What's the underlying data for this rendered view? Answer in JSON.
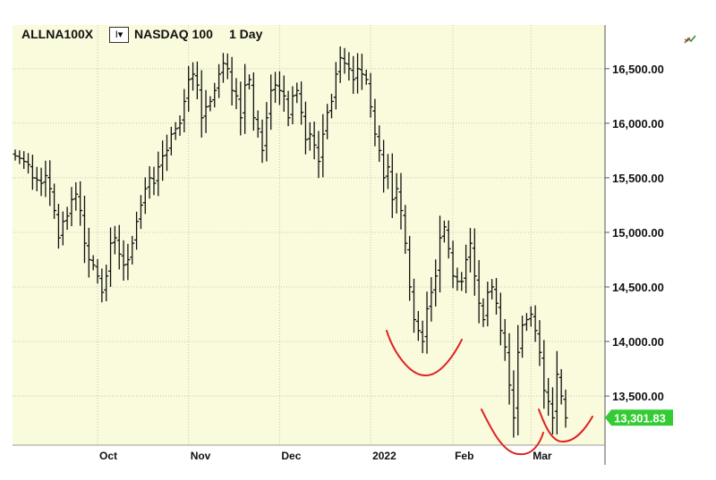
{
  "header": {
    "symbol": "ALLNA100X",
    "dropdown_label": "I▾",
    "index_name": "NASDAQ 100",
    "interval": "1 Day"
  },
  "colors": {
    "plot_background": "#fafadd",
    "grid": "#c8c8b4",
    "bars": "#111111",
    "last_price_badge": "#33cc33",
    "annotation": "#dd2222"
  },
  "chart_data": {
    "type": "ohlc",
    "title": "NASDAQ 100",
    "ylim": [
      13050,
      16900
    ],
    "yticks": [
      "13,500.00",
      "14,000.00",
      "14,500.00",
      "15,000.00",
      "15,500.00",
      "16,000.00",
      "16,500.00"
    ],
    "ytick_values": [
      13500,
      14000,
      14500,
      15000,
      15500,
      16000,
      16500
    ],
    "xticks": [
      {
        "label": "Oct",
        "bar": 19
      },
      {
        "label": "Nov",
        "bar": 40
      },
      {
        "label": "Dec",
        "bar": 61
      },
      {
        "label": "2022",
        "bar": 82
      },
      {
        "label": "Feb",
        "bar": 101
      },
      {
        "label": "Mar",
        "bar": 119
      }
    ],
    "last_price": 13301.83,
    "last_price_label": "13,301.83",
    "grid": true,
    "closes": [
      15700,
      15680,
      15650,
      15620,
      15500,
      15480,
      15450,
      15520,
      15400,
      15200,
      14950,
      15100,
      15150,
      15300,
      15350,
      15200,
      14900,
      14750,
      14700,
      14600,
      14450,
      14600,
      14900,
      14950,
      14800,
      14700,
      14750,
      14900,
      15100,
      15250,
      15400,
      15500,
      15450,
      15600,
      15700,
      15750,
      15900,
      15950,
      16000,
      16200,
      16400,
      16450,
      16350,
      16050,
      16150,
      16200,
      16300,
      16450,
      16550,
      16500,
      16300,
      16250,
      16050,
      16350,
      16400,
      16050,
      15950,
      15750,
      16050,
      16300,
      16350,
      16300,
      16250,
      16050,
      16250,
      16300,
      16100,
      15850,
      15900,
      15800,
      15650,
      15900,
      16100,
      16200,
      16450,
      16600,
      16550,
      16500,
      16400,
      16500,
      16450,
      16400,
      16150,
      15900,
      15750,
      15500,
      15600,
      15300,
      15400,
      15200,
      14900,
      14500,
      14200,
      14100,
      14000,
      14300,
      14450,
      14600,
      14950,
      15050,
      14850,
      14600,
      14550,
      14550,
      14750,
      14900,
      14600,
      14350,
      14200,
      14450,
      14500,
      14350,
      14100,
      13950,
      13600,
      13300,
      13900,
      14150,
      14200,
      14250,
      14100,
      13900,
      13550,
      13450,
      13300,
      13700,
      13500,
      13300
    ]
  }
}
